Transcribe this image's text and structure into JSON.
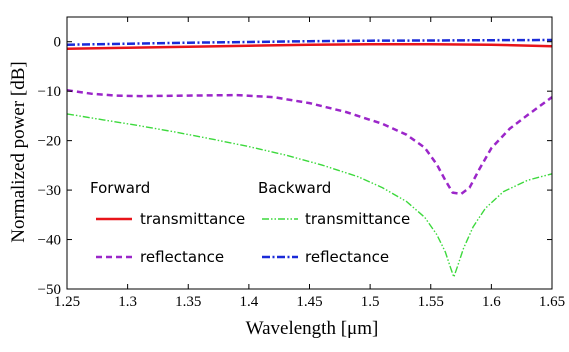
{
  "chart_data": {
    "type": "line",
    "xlabel": "Wavelength [μm]",
    "ylabel": "Normalized power [dB]",
    "xlim": [
      1.25,
      1.65
    ],
    "ylim": [
      -50,
      5
    ],
    "xticks": [
      1.25,
      1.3,
      1.35,
      1.4,
      1.45,
      1.5,
      1.55,
      1.6,
      1.65
    ],
    "xtick_labels": [
      "1.25",
      "1.3",
      "1.35",
      "1.4",
      "1.45",
      "1.5",
      "1.55",
      "1.6",
      "1.65"
    ],
    "yticks": [
      0,
      -10,
      -20,
      -30,
      -40,
      -50
    ],
    "ytick_labels": [
      "0",
      "−10",
      "−20",
      "−30",
      "−40",
      "−50"
    ],
    "grid": false,
    "legend_placement": "lower-left",
    "legend_groups": [
      "Forward",
      "Backward"
    ],
    "series": [
      {
        "name": "transmittance",
        "group": "Forward",
        "color": "#e8141a",
        "dash": "solid",
        "x": [
          1.25,
          1.3,
          1.35,
          1.4,
          1.45,
          1.5,
          1.55,
          1.6,
          1.65
        ],
        "y": [
          -1.4,
          -1.2,
          -1.0,
          -0.8,
          -0.6,
          -0.5,
          -0.5,
          -0.6,
          -0.9
        ]
      },
      {
        "name": "reflectance",
        "group": "Forward",
        "color": "#9b26c9",
        "dash": "dashed",
        "x": [
          1.25,
          1.27,
          1.29,
          1.31,
          1.35,
          1.39,
          1.42,
          1.45,
          1.48,
          1.51,
          1.53,
          1.545,
          1.555,
          1.562,
          1.568,
          1.575,
          1.582,
          1.59,
          1.6,
          1.615,
          1.63,
          1.65
        ],
        "y": [
          -9.8,
          -10.5,
          -10.9,
          -11.0,
          -10.9,
          -10.8,
          -11.2,
          -12.4,
          -14.2,
          -16.6,
          -18.8,
          -21.4,
          -24.8,
          -28.0,
          -30.5,
          -30.8,
          -29.5,
          -25.8,
          -21.5,
          -17.6,
          -14.8,
          -11.2
        ]
      },
      {
        "name": "transmittance",
        "group": "Backward",
        "color": "#3dd93d",
        "dash": "dashdotdot",
        "x": [
          1.25,
          1.28,
          1.31,
          1.34,
          1.37,
          1.4,
          1.43,
          1.46,
          1.49,
          1.51,
          1.53,
          1.545,
          1.555,
          1.562,
          1.566,
          1.569,
          1.572,
          1.577,
          1.585,
          1.595,
          1.61,
          1.63,
          1.65
        ],
        "y": [
          -14.6,
          -15.8,
          -17.0,
          -18.3,
          -19.7,
          -21.2,
          -22.9,
          -24.9,
          -27.3,
          -29.5,
          -32.3,
          -35.5,
          -39.0,
          -42.5,
          -45.5,
          -47.6,
          -45.5,
          -41.8,
          -37.4,
          -33.7,
          -30.3,
          -28.0,
          -26.7
        ]
      },
      {
        "name": "reflectance",
        "group": "Backward",
        "color": "#1a2ad8",
        "dash": "dashdot",
        "x": [
          1.25,
          1.3,
          1.35,
          1.4,
          1.45,
          1.5,
          1.55,
          1.6,
          1.65
        ],
        "y": [
          -0.6,
          -0.4,
          -0.2,
          -0.05,
          0.1,
          0.2,
          0.25,
          0.3,
          0.35
        ]
      }
    ]
  }
}
